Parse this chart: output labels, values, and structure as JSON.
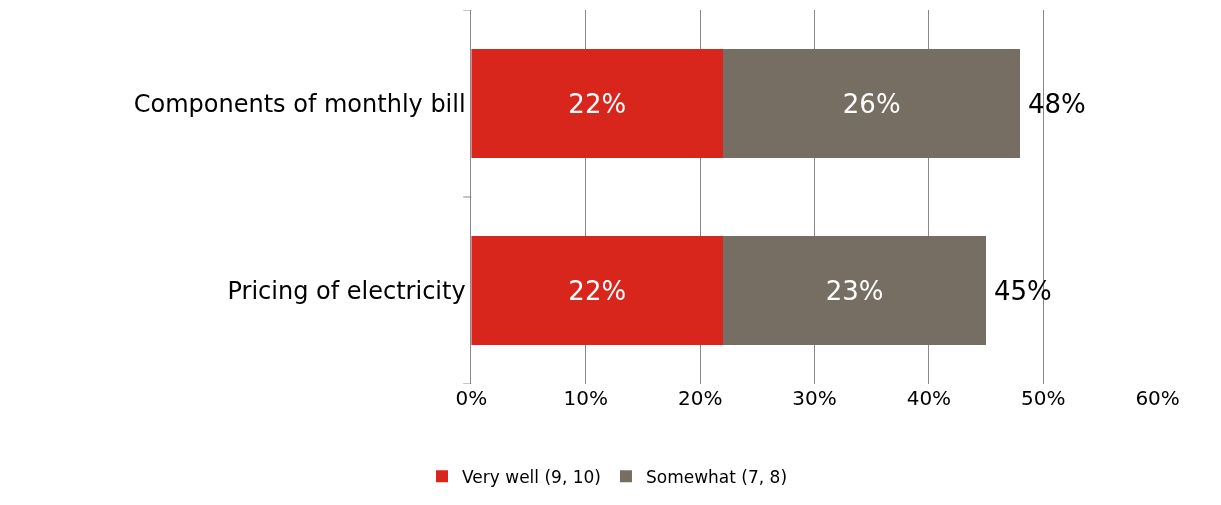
{
  "chart_data": {
    "type": "bar",
    "orientation": "horizontal",
    "stacked": true,
    "categories": [
      "Components of monthly bill",
      "Pricing of electricity"
    ],
    "series": [
      {
        "name": "Very well (9, 10)",
        "color": "#d9261c",
        "values": [
          22,
          22
        ],
        "value_labels": [
          "22%",
          "22%"
        ]
      },
      {
        "name": "Somewhat (7, 8)",
        "color": "#776e63",
        "values": [
          26,
          23
        ],
        "value_labels": [
          "26%",
          "23%"
        ]
      }
    ],
    "totals": [
      "48%",
      "45%"
    ],
    "xlim": [
      0,
      60
    ],
    "xticks": [
      {
        "value": 0,
        "label": "0%"
      },
      {
        "value": 10,
        "label": "10%"
      },
      {
        "value": 20,
        "label": "20%"
      },
      {
        "value": 30,
        "label": "30%"
      },
      {
        "value": 40,
        "label": "40%"
      },
      {
        "value": 50,
        "label": "50%"
      },
      {
        "value": 60,
        "label": "60%"
      }
    ],
    "grid": "x",
    "legend": "bottom"
  }
}
